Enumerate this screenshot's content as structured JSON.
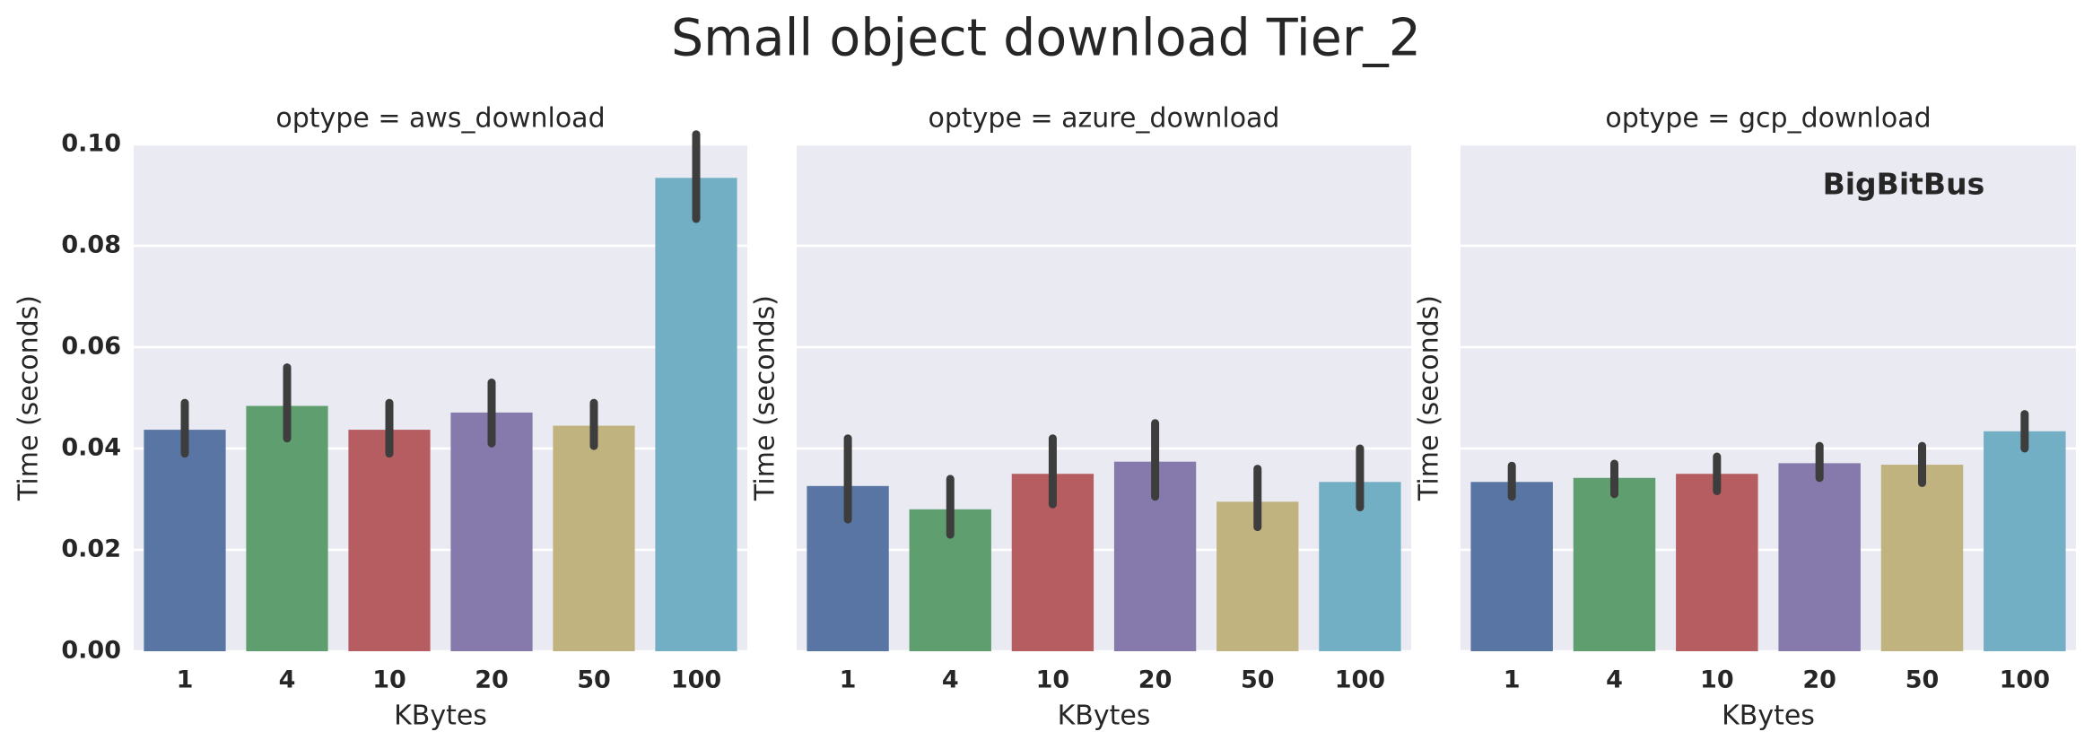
{
  "title": "Small object download Tier_2",
  "chart_data": [
    {
      "type": "bar",
      "title": "optype = aws_download",
      "xlabel": "KBytes",
      "ylabel": "Time (seconds)",
      "categories": [
        "1",
        "4",
        "10",
        "20",
        "50",
        "100"
      ],
      "values": [
        0.0437,
        0.0484,
        0.0437,
        0.0471,
        0.0445,
        0.0934
      ],
      "ci_low": [
        0.039,
        0.042,
        0.039,
        0.041,
        0.0405,
        0.0853
      ],
      "ci_high": [
        0.049,
        0.056,
        0.049,
        0.053,
        0.049,
        0.102
      ],
      "colors": [
        "#5975a4",
        "#5f9e6e",
        "#b55d60",
        "#857aab",
        "#c1b37f",
        "#73afc4"
      ],
      "ylim": [
        0,
        0.1
      ],
      "yticks": [
        {
          "value": 0,
          "label": "0.00"
        },
        {
          "value": 0.02,
          "label": "0.02"
        },
        {
          "value": 0.04,
          "label": "0.04"
        },
        {
          "value": 0.06,
          "label": "0.06"
        },
        {
          "value": 0.08,
          "label": "0.08"
        },
        {
          "value": 0.1,
          "label": "0.10"
        }
      ],
      "grid": true
    },
    {
      "type": "bar",
      "title": "optype = azure_download",
      "xlabel": "KBytes",
      "ylabel": "Time (seconds)",
      "categories": [
        "1",
        "4",
        "10",
        "20",
        "50",
        "100"
      ],
      "values": [
        0.0326,
        0.028,
        0.035,
        0.0374,
        0.0295,
        0.0334
      ],
      "ci_low": [
        0.026,
        0.023,
        0.029,
        0.0305,
        0.0245,
        0.0284
      ],
      "ci_high": [
        0.042,
        0.034,
        0.042,
        0.045,
        0.036,
        0.04
      ],
      "colors": [
        "#5975a4",
        "#5f9e6e",
        "#b55d60",
        "#857aab",
        "#c1b37f",
        "#73afc4"
      ],
      "ylim": [
        0,
        0.1
      ],
      "yticks": [
        0,
        0.02,
        0.04,
        0.06,
        0.08,
        0.1
      ],
      "grid": true
    },
    {
      "type": "bar",
      "title": "optype = gcp_download",
      "xlabel": "KBytes",
      "ylabel": "Time (seconds)",
      "annotation": "BigBitBus",
      "categories": [
        "1",
        "4",
        "10",
        "20",
        "50",
        "100"
      ],
      "values": [
        0.0334,
        0.0342,
        0.035,
        0.0371,
        0.0368,
        0.0434
      ],
      "ci_low": [
        0.0305,
        0.031,
        0.0316,
        0.0342,
        0.0332,
        0.04
      ],
      "ci_high": [
        0.0366,
        0.037,
        0.0384,
        0.0405,
        0.0405,
        0.0468
      ],
      "colors": [
        "#5975a4",
        "#5f9e6e",
        "#b55d60",
        "#857aab",
        "#c1b37f",
        "#73afc4"
      ],
      "ylim": [
        0,
        0.1
      ],
      "yticks": [
        0,
        0.02,
        0.04,
        0.06,
        0.08,
        0.1
      ],
      "grid": true
    }
  ]
}
